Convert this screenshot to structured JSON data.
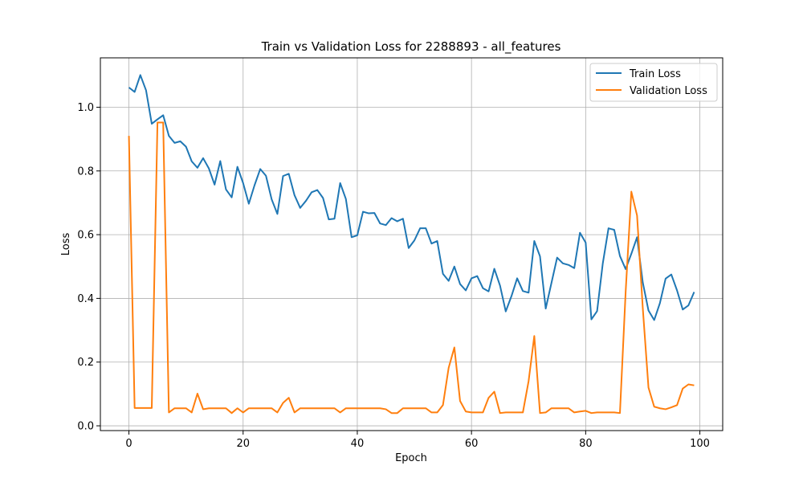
{
  "chart_data": {
    "type": "line",
    "title": "Train vs Validation Loss for 2288893 - all_features",
    "xlabel": "Epoch",
    "ylabel": "Loss",
    "xlim": [
      -5,
      104
    ],
    "ylim": [
      -0.015,
      1.155
    ],
    "x_ticks": [
      0,
      20,
      40,
      60,
      80,
      100
    ],
    "y_ticks": [
      0.0,
      0.2,
      0.4,
      0.6,
      0.8,
      1.0
    ],
    "grid": true,
    "legend_position": "top-right",
    "series": [
      {
        "name": "Train Loss",
        "color": "#1f77b4",
        "values": [
          1.062,
          1.048,
          1.101,
          1.053,
          0.948,
          0.962,
          0.975,
          0.91,
          0.888,
          0.893,
          0.876,
          0.83,
          0.81,
          0.84,
          0.808,
          0.757,
          0.831,
          0.742,
          0.717,
          0.813,
          0.762,
          0.697,
          0.755,
          0.806,
          0.785,
          0.711,
          0.665,
          0.784,
          0.791,
          0.724,
          0.684,
          0.706,
          0.733,
          0.74,
          0.715,
          0.648,
          0.65,
          0.762,
          0.712,
          0.592,
          0.598,
          0.672,
          0.667,
          0.668,
          0.635,
          0.63,
          0.652,
          0.642,
          0.65,
          0.558,
          0.582,
          0.62,
          0.62,
          0.572,
          0.58,
          0.477,
          0.455,
          0.5,
          0.445,
          0.425,
          0.463,
          0.47,
          0.432,
          0.422,
          0.493,
          0.44,
          0.359,
          0.407,
          0.463,
          0.423,
          0.418,
          0.58,
          0.532,
          0.368,
          0.448,
          0.528,
          0.51,
          0.505,
          0.495,
          0.606,
          0.575,
          0.334,
          0.36,
          0.51,
          0.62,
          0.615,
          0.533,
          0.492,
          0.54,
          0.592,
          0.45,
          0.362,
          0.332,
          0.385,
          0.462,
          0.475,
          0.425,
          0.365,
          0.378,
          0.42
        ]
      },
      {
        "name": "Validation Loss",
        "color": "#ff7f0e",
        "values": [
          0.91,
          0.056,
          0.056,
          0.056,
          0.056,
          0.952,
          0.952,
          0.042,
          0.055,
          0.055,
          0.055,
          0.042,
          0.101,
          0.052,
          0.055,
          0.055,
          0.055,
          0.055,
          0.04,
          0.055,
          0.042,
          0.055,
          0.055,
          0.055,
          0.055,
          0.055,
          0.042,
          0.072,
          0.088,
          0.042,
          0.055,
          0.055,
          0.055,
          0.055,
          0.055,
          0.055,
          0.055,
          0.042,
          0.055,
          0.055,
          0.055,
          0.055,
          0.055,
          0.055,
          0.055,
          0.052,
          0.04,
          0.04,
          0.055,
          0.055,
          0.055,
          0.055,
          0.055,
          0.042,
          0.042,
          0.065,
          0.182,
          0.246,
          0.078,
          0.045,
          0.042,
          0.042,
          0.042,
          0.088,
          0.107,
          0.04,
          0.042,
          0.042,
          0.042,
          0.042,
          0.14,
          0.282,
          0.04,
          0.042,
          0.055,
          0.055,
          0.055,
          0.055,
          0.042,
          0.045,
          0.047,
          0.04,
          0.042,
          0.042,
          0.042,
          0.042,
          0.04,
          0.42,
          0.735,
          0.66,
          0.37,
          0.12,
          0.06,
          0.055,
          0.052,
          0.058,
          0.065,
          0.117,
          0.13,
          0.127
        ]
      }
    ]
  }
}
